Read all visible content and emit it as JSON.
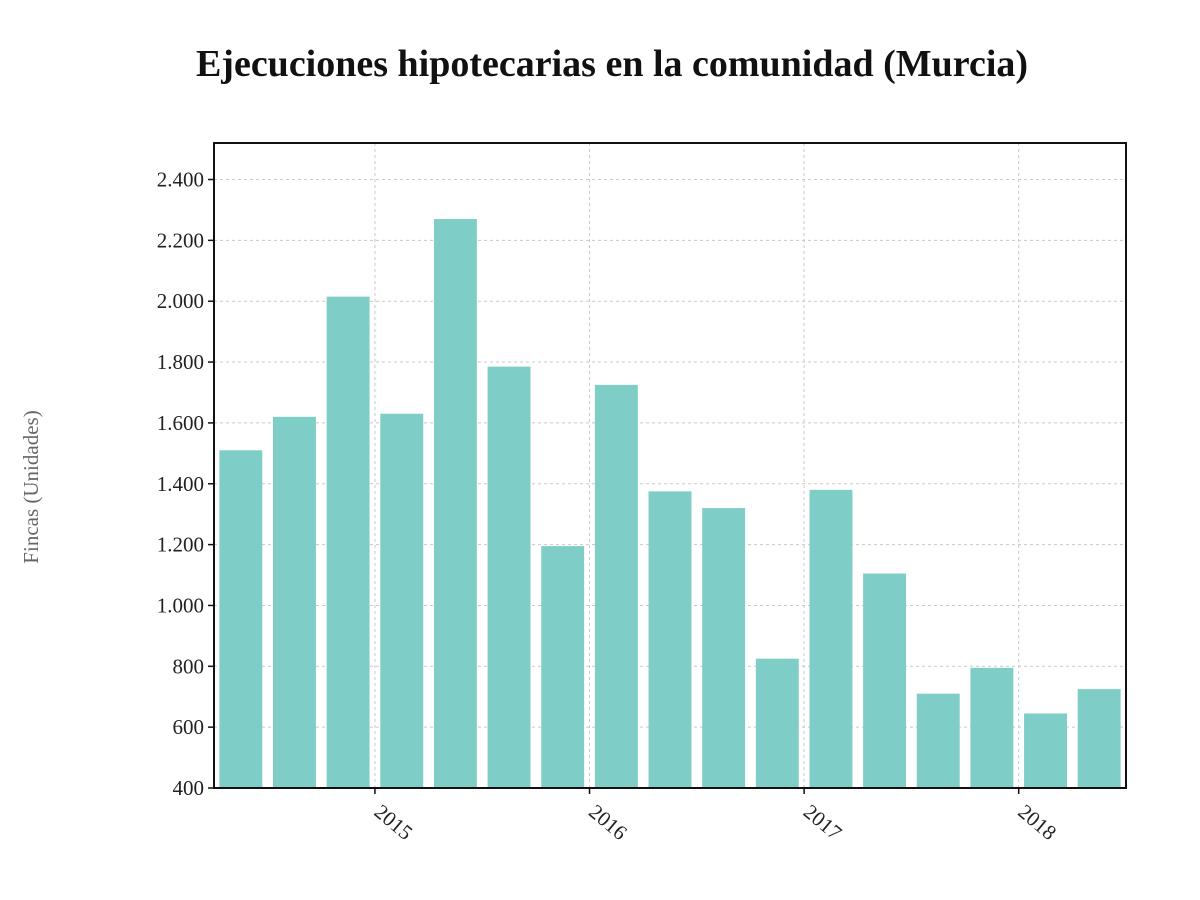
{
  "chart_data": {
    "type": "bar",
    "title": "Ejecuciones hipotecarias en la comunidad (Murcia)",
    "xlabel": "",
    "ylabel": "Fincas (Unidades)",
    "ylim": [
      400,
      2520
    ],
    "yticks": [
      400,
      600,
      800,
      1000,
      1200,
      1400,
      1600,
      1800,
      2000,
      2200,
      2400
    ],
    "ytick_labels": [
      "400",
      "600",
      "800",
      "1.000",
      "1.200",
      "1.400",
      "1.600",
      "1.800",
      "2.000",
      "2.200",
      "2.400"
    ],
    "x_ticks": [
      {
        "label": "2015",
        "after_bar": 3
      },
      {
        "label": "2016",
        "after_bar": 7
      },
      {
        "label": "2017",
        "after_bar": 11
      },
      {
        "label": "2018",
        "after_bar": 15
      }
    ],
    "grid": true,
    "bar_color": "#7ecdc6",
    "values": [
      1510,
      1620,
      2015,
      1630,
      2270,
      1785,
      1195,
      1725,
      1375,
      1320,
      825,
      1380,
      1105,
      710,
      795,
      645,
      725
    ]
  }
}
